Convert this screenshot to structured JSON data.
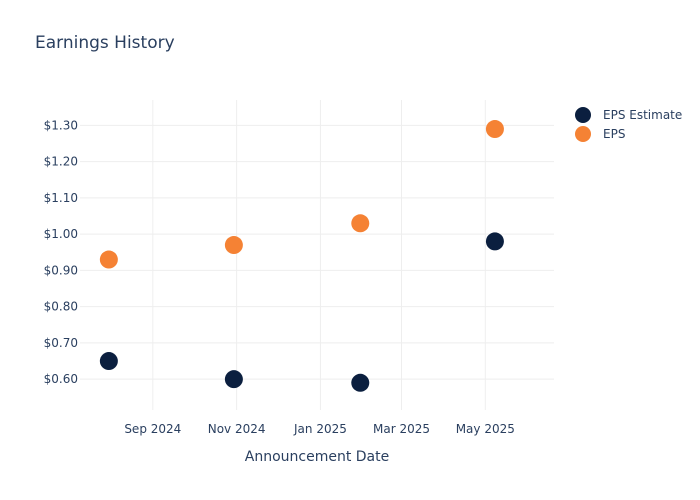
{
  "chart_data": {
    "type": "scatter",
    "title": "Earnings History",
    "xlabel": "Announcement Date",
    "ylabel": "",
    "x_axis": {
      "type": "date",
      "range": [
        "2024-07-10",
        "2025-06-20"
      ],
      "ticks": [
        {
          "date": "2024-09-01",
          "label": "Sep 2024"
        },
        {
          "date": "2024-11-01",
          "label": "Nov 2024"
        },
        {
          "date": "2025-01-01",
          "label": "Jan 2025"
        },
        {
          "date": "2025-03-01",
          "label": "Mar 2025"
        },
        {
          "date": "2025-05-01",
          "label": "May 2025"
        }
      ]
    },
    "y_axis": {
      "range": [
        0.515,
        1.37
      ],
      "ticks": [
        0.6,
        0.7,
        0.8,
        0.9,
        1.0,
        1.1,
        1.2,
        1.3
      ],
      "tick_labels": [
        "$0.60",
        "$0.70",
        "$0.80",
        "$0.90",
        "$1.00",
        "$1.10",
        "$1.20",
        "$1.30"
      ]
    },
    "grid": true,
    "legend": "top-right",
    "series": [
      {
        "name": "EPS Estimate",
        "color": "#0b1f3f",
        "points": [
          {
            "x": "2024-07-31",
            "y": 0.65
          },
          {
            "x": "2024-10-30",
            "y": 0.6
          },
          {
            "x": "2025-01-30",
            "y": 0.59
          },
          {
            "x": "2025-05-08",
            "y": 0.98
          }
        ]
      },
      {
        "name": "EPS",
        "color": "#f58234",
        "points": [
          {
            "x": "2024-07-31",
            "y": 0.93
          },
          {
            "x": "2024-10-30",
            "y": 0.97
          },
          {
            "x": "2025-01-30",
            "y": 1.03
          },
          {
            "x": "2025-05-08",
            "y": 1.29
          }
        ]
      }
    ]
  }
}
